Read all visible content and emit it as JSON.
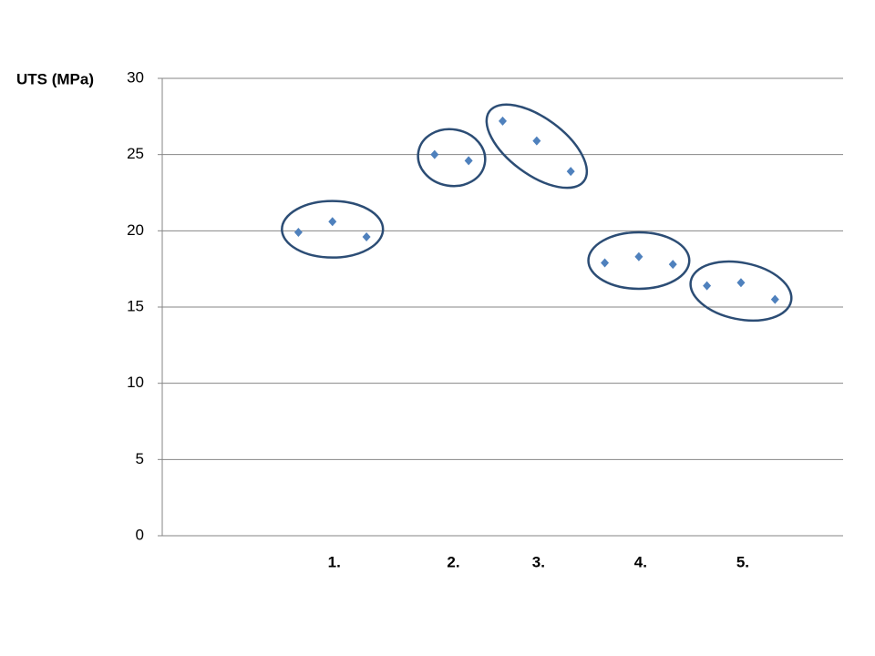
{
  "chart_data": {
    "type": "scatter",
    "y_label": "UTS (MPa)",
    "color": "#4f81bd",
    "ellipse_color": "#2c4d75",
    "xlim": [
      0,
      20
    ],
    "ylim": [
      0,
      30
    ],
    "yticks": [
      0,
      5,
      10,
      15,
      20,
      25,
      30
    ],
    "grid": true,
    "groups": [
      {
        "label": "1.",
        "x": [
          4,
          5,
          6
        ],
        "values": [
          19.9,
          20.6,
          19.6
        ]
      },
      {
        "label": "2.",
        "x": [
          8,
          9
        ],
        "values": [
          25.0,
          24.6
        ]
      },
      {
        "label": "3.",
        "x": [
          10,
          11,
          12
        ],
        "values": [
          27.2,
          25.9,
          23.9
        ]
      },
      {
        "label": "4.",
        "x": [
          13,
          14,
          15
        ],
        "values": [
          17.9,
          18.3,
          17.8
        ]
      },
      {
        "label": "5.",
        "x": [
          16,
          17,
          18
        ],
        "values": [
          16.4,
          16.6,
          15.5
        ]
      }
    ]
  }
}
